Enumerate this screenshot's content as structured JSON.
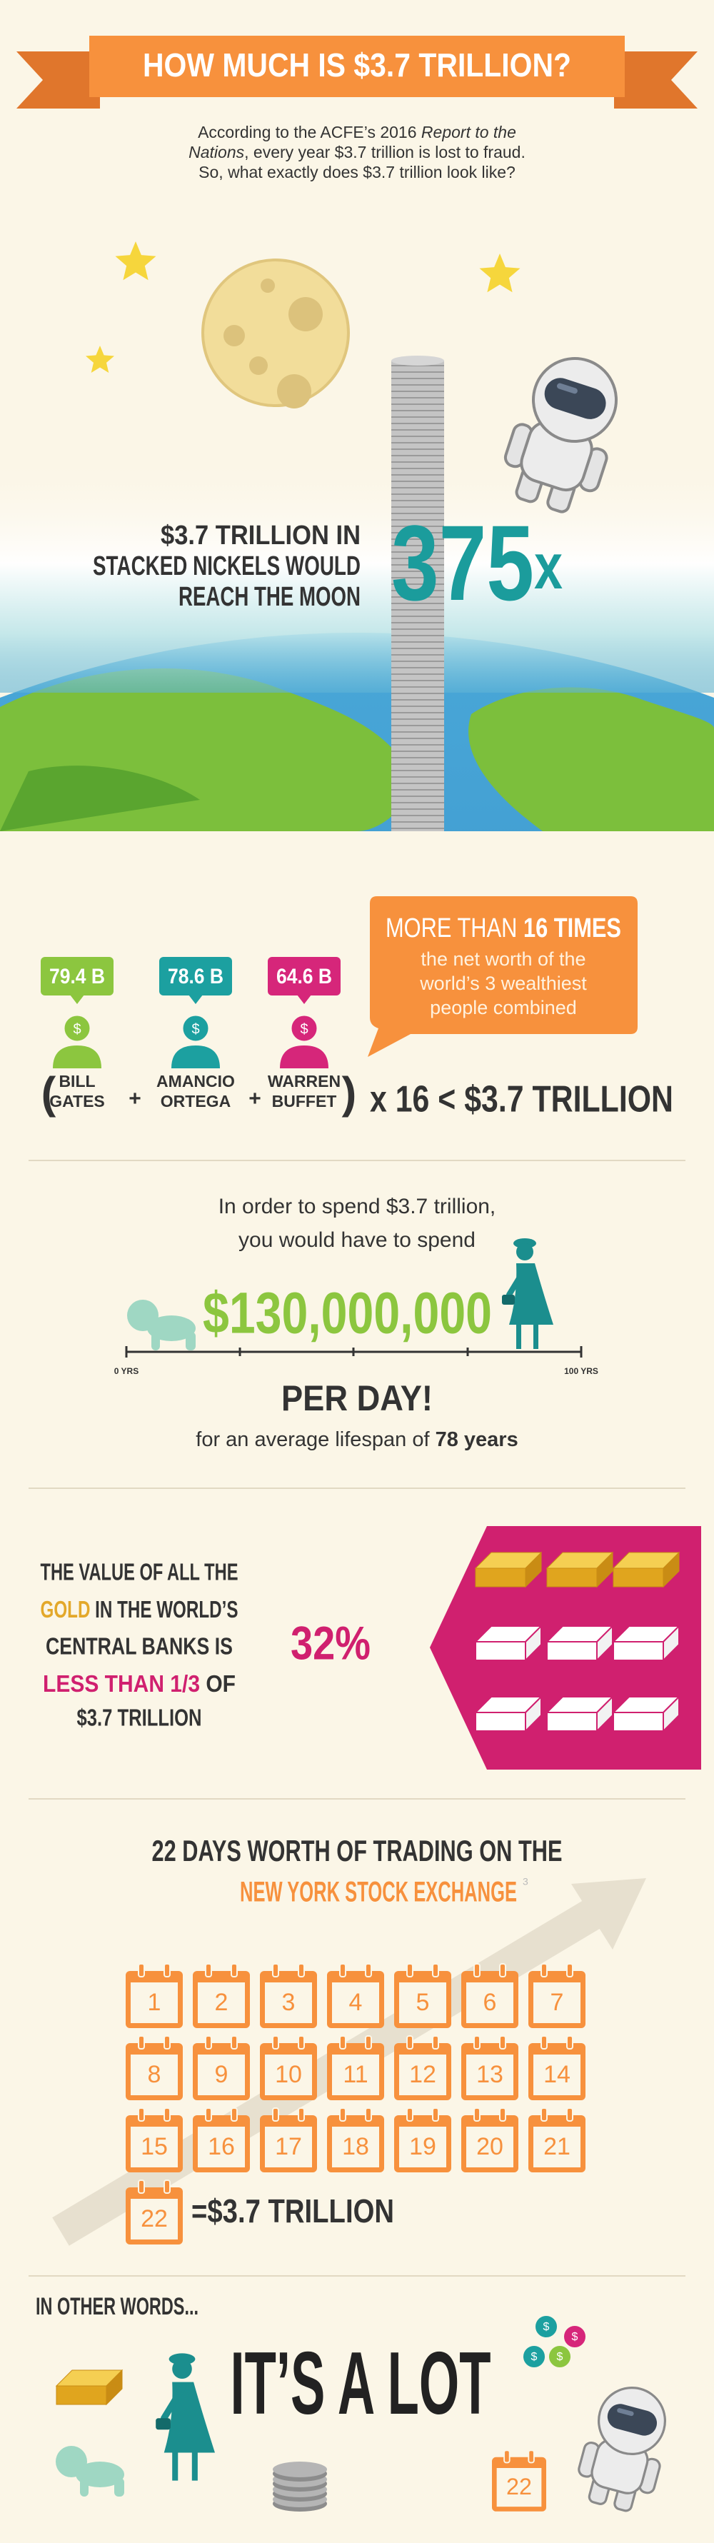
{
  "header": {
    "title": "HOW MUCH IS $3.7 TRILLION?"
  },
  "intro": {
    "text_1": "According to the ACFE’s 2016 ",
    "report_title_1": "Report to the",
    "report_title_2": "Nations",
    "text_2": ", every year $3.7 trillion is lost to fraud.",
    "text_3": "So, what exactly does $3.7 trillion look like?"
  },
  "moon": {
    "caption_lines": [
      "$3.7 TRILLION IN",
      "STACKED NICKELS WOULD",
      "REACH THE MOON"
    ],
    "multiplier": "375",
    "multiplier_suffix": "x"
  },
  "wealth": {
    "icon_symbol": "$",
    "people": [
      {
        "net_worth": "79.4 B",
        "name_lines": [
          "BILL",
          "GATES"
        ]
      },
      {
        "net_worth": "78.6 B",
        "name_lines": [
          "AMANCIO",
          "ORTEGA"
        ]
      },
      {
        "net_worth": "64.6 B",
        "name_lines": [
          "WARREN",
          "BUFFET"
        ]
      }
    ],
    "callout": {
      "headline_prefix": "MORE THAN ",
      "headline_emphasis": "16 TIMES",
      "text_lines": [
        "the net worth of the",
        "world’s 3 wealthiest",
        "people combined"
      ]
    },
    "equation": {
      "open": "(",
      "operators": [
        "+",
        "+"
      ],
      "close": ")",
      "result": "x 16 < $3.7 TRILLION"
    }
  },
  "spend": {
    "text_lines": [
      "In order to spend $3.7 trillion,",
      "you would have to spend"
    ],
    "amount": "$130,000,000",
    "timeline_start": "0 YRS",
    "timeline_end": "100 YRS",
    "per_day": "PER DAY!",
    "lifespan_prefix": "for an average lifespan of ",
    "lifespan": "78 years"
  },
  "gold": {
    "line_1": "THE VALUE OF ALL THE",
    "gold_word": "GOLD",
    "line_2_rest": " IN THE WORLD’S",
    "line_3": "CENTRAL BANKS IS",
    "less_than": "LESS THAN 1/3",
    "line_4_rest": " OF",
    "line_5": "$3.7 TRILLION",
    "percent": "32%"
  },
  "trading": {
    "title_line_1": "22 DAYS WORTH OF TRADING ON THE",
    "title_line_2": "NEW YORK STOCK EXCHANGE",
    "footnote": "3",
    "days": [
      1,
      2,
      3,
      4,
      5,
      6,
      7,
      8,
      9,
      10,
      11,
      12,
      13,
      14,
      15,
      16,
      17,
      18,
      19,
      20,
      21,
      22
    ],
    "result": "=$3.7 TRILLION"
  },
  "closing": {
    "lead": "IN OTHER WORDS...",
    "headline": "IT’S A LOT",
    "calendar_day": "22"
  }
}
